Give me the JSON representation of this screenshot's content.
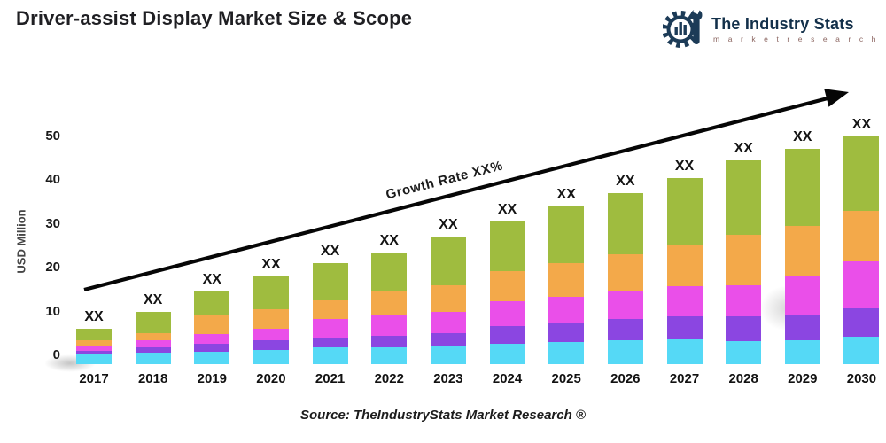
{
  "header": {
    "title": "Driver-assist Display Market Size & Scope"
  },
  "logo": {
    "name": "The Industry Stats",
    "tagline": "m a r k e t   r e s e a r c h",
    "color": "#13304a",
    "tagline_color": "#8b6560"
  },
  "chart_data": {
    "type": "bar",
    "stacked": true,
    "title": "Driver-assist Display Market Size & Scope",
    "ylabel": "USD Million",
    "xlabel": "",
    "ylim": [
      0,
      55
    ],
    "yticks": [
      0,
      10,
      20,
      30,
      40,
      50
    ],
    "grid": false,
    "legend": "none",
    "bar_value_label": "XX",
    "annotation": "Growth Rate XX%",
    "categories": [
      "2017",
      "2018",
      "2019",
      "2020",
      "2021",
      "2022",
      "2023",
      "2024",
      "2025",
      "2026",
      "2027",
      "2028",
      "2029",
      "2030"
    ],
    "totals_estimated": [
      6,
      10,
      14.5,
      18,
      21,
      23.5,
      27,
      30.5,
      34,
      37,
      40.5,
      44.5,
      47,
      50
    ],
    "series": [
      {
        "name": "segment-cyan",
        "color": "#55d9f6",
        "values": [
          0.4,
          0.6,
          0.9,
          1.2,
          1.8,
          1.8,
          2.0,
          2.6,
          3.0,
          3.4,
          3.6,
          3.2,
          3.5,
          4.2
        ]
      },
      {
        "name": "segment-purple",
        "color": "#8b46e1",
        "values": [
          0.7,
          1.3,
          1.8,
          2.2,
          2.2,
          2.6,
          3.0,
          4.0,
          4.4,
          4.9,
          5.2,
          5.6,
          5.8,
          6.6
        ]
      },
      {
        "name": "segment-magenta",
        "color": "#ea4fe9",
        "values": [
          0.9,
          1.5,
          2.2,
          2.6,
          4.2,
          4.6,
          4.8,
          5.8,
          6.0,
          6.3,
          7.0,
          7.2,
          8.7,
          10.7
        ]
      },
      {
        "name": "segment-orange",
        "color": "#f3a94a",
        "values": [
          1.5,
          1.7,
          4.1,
          4.5,
          4.3,
          5.5,
          6.2,
          6.7,
          7.6,
          8.4,
          9.2,
          11.5,
          11.5,
          11.5
        ]
      },
      {
        "name": "segment-green",
        "color": "#9fbc3f",
        "values": [
          2.5,
          4.9,
          5.5,
          7.5,
          8.5,
          9.0,
          11.0,
          11.4,
          13.0,
          14.0,
          15.5,
          17.0,
          17.5,
          17.0
        ]
      }
    ]
  },
  "footer": {
    "source": "Source: TheIndustryStats Market Research ®"
  }
}
